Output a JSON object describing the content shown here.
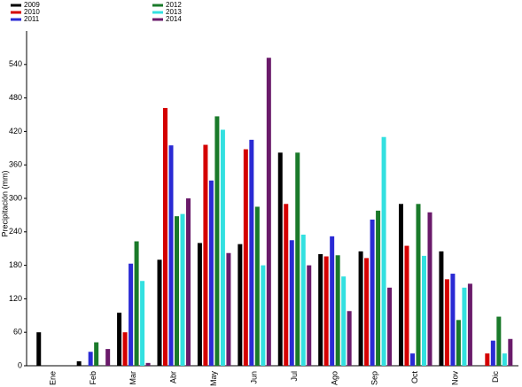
{
  "chart_data": {
    "type": "bar",
    "y_label": "Precipitación (mm)",
    "categories": [
      "Ene",
      "Feb",
      "Mar",
      "Abr",
      "May",
      "Jun",
      "Jul",
      "Ago",
      "Sep",
      "Oct",
      "Nov",
      "Dic"
    ],
    "series": [
      {
        "name": "2009",
        "color": "#000000",
        "values": [
          60,
          8,
          95,
          190,
          220,
          218,
          382,
          200,
          205,
          290,
          205,
          null
        ]
      },
      {
        "name": "2010",
        "color": "#d40000",
        "values": [
          null,
          null,
          60,
          462,
          396,
          388,
          290,
          196,
          193,
          215,
          155,
          22
        ]
      },
      {
        "name": "2011",
        "color": "#2a2ad4",
        "values": [
          null,
          25,
          183,
          395,
          332,
          405,
          225,
          232,
          262,
          22,
          165,
          45
        ]
      },
      {
        "name": "2012",
        "color": "#1a7a2a",
        "values": [
          null,
          42,
          223,
          268,
          447,
          285,
          382,
          198,
          278,
          290,
          82,
          88
        ]
      },
      {
        "name": "2013",
        "color": "#33e0e0",
        "values": [
          null,
          null,
          152,
          272,
          423,
          180,
          235,
          160,
          410,
          197,
          140,
          22
        ]
      },
      {
        "name": "2014",
        "color": "#6a1a6a",
        "values": [
          null,
          30,
          5,
          300,
          202,
          552,
          180,
          98,
          140,
          275,
          147,
          48
        ]
      }
    ],
    "ylim": [
      0,
      600
    ],
    "yticks": [
      0,
      60,
      120,
      180,
      240,
      300,
      360,
      420,
      480,
      540
    ]
  }
}
